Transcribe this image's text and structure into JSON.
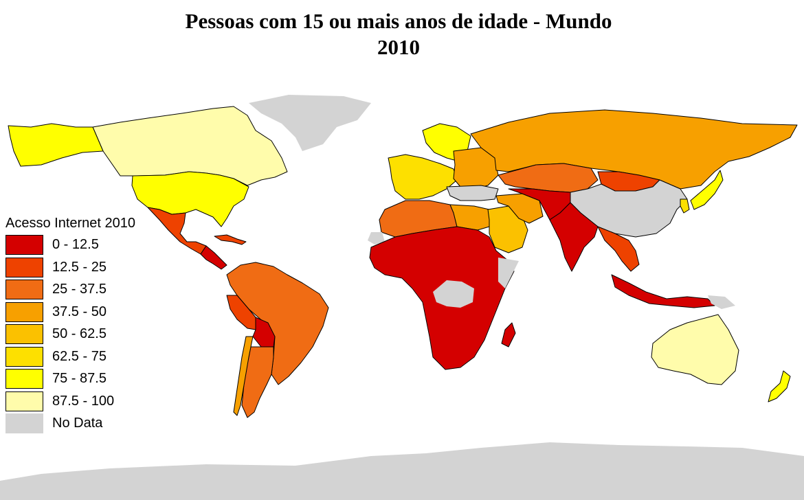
{
  "title": {
    "line1": "Pessoas com 15 ou mais anos de idade - Mundo",
    "line2": "2010"
  },
  "legend": {
    "title": "Acesso Internet 2010",
    "items": [
      {
        "label": "0 - 12.5",
        "color": "#d40000"
      },
      {
        "label": "12.5 - 25",
        "color": "#ee4200"
      },
      {
        "label": "25 - 37.5",
        "color": "#f06c14"
      },
      {
        "label": "37.5 - 50",
        "color": "#f7a000"
      },
      {
        "label": "50 - 62.5",
        "color": "#fbc100"
      },
      {
        "label": "62.5 - 75",
        "color": "#fde000"
      },
      {
        "label": "75 - 87.5",
        "color": "#ffff00"
      },
      {
        "label": "87.5 - 100",
        "color": "#fffcab"
      },
      {
        "label": "No Data",
        "color": "#d3d3d3"
      }
    ]
  },
  "regions": [
    {
      "name": "North America (north)",
      "color": "#fffcab"
    },
    {
      "name": "Alaska",
      "color": "#ffff00"
    },
    {
      "name": "United States",
      "color": "#ffff00"
    },
    {
      "name": "Mexico",
      "color": "#ee4200"
    },
    {
      "name": "Central America",
      "color": "#d40000"
    },
    {
      "name": "Caribbean",
      "color": "#ee4200"
    },
    {
      "name": "Greenland",
      "color": "#d3d3d3"
    },
    {
      "name": "South America (north)",
      "color": "#f06c14"
    },
    {
      "name": "Brazil",
      "color": "#f06c14"
    },
    {
      "name": "Peru",
      "color": "#ee4200"
    },
    {
      "name": "Bolivia",
      "color": "#d40000"
    },
    {
      "name": "Argentina",
      "color": "#f06c14"
    },
    {
      "name": "Chile",
      "color": "#f7a000"
    },
    {
      "name": "Western Europe",
      "color": "#fde000"
    },
    {
      "name": "Scandinavia",
      "color": "#ffff00"
    },
    {
      "name": "Eastern Europe",
      "color": "#f7a000"
    },
    {
      "name": "Russia",
      "color": "#f7a000"
    },
    {
      "name": "Kazakhstan",
      "color": "#f06c14"
    },
    {
      "name": "Mongolia",
      "color": "#ee4200"
    },
    {
      "name": "China",
      "color": "#d3d3d3"
    },
    {
      "name": "Turkey",
      "color": "#d3d3d3"
    },
    {
      "name": "North Africa",
      "color": "#f06c14"
    },
    {
      "name": "Libya / Egypt",
      "color": "#f7a000"
    },
    {
      "name": "Arabian Peninsula",
      "color": "#fbc100"
    },
    {
      "name": "Iran",
      "color": "#f7a000"
    },
    {
      "name": "Central Asia",
      "color": "#d40000"
    },
    {
      "name": "India",
      "color": "#d40000"
    },
    {
      "name": "Southeast Asia",
      "color": "#ee4200"
    },
    {
      "name": "Indonesia",
      "color": "#d40000"
    },
    {
      "name": "Japan",
      "color": "#ffff00"
    },
    {
      "name": "Korea",
      "color": "#fde000"
    },
    {
      "name": "Sub-Saharan Africa",
      "color": "#d40000"
    },
    {
      "name": "Central Africa",
      "color": "#d3d3d3"
    },
    {
      "name": "Somalia",
      "color": "#d3d3d3"
    },
    {
      "name": "Western Sahara",
      "color": "#d3d3d3"
    },
    {
      "name": "Madagascar",
      "color": "#d40000"
    },
    {
      "name": "Australia",
      "color": "#fffcab"
    },
    {
      "name": "New Zealand",
      "color": "#ffff00"
    },
    {
      "name": "Papua New Guinea",
      "color": "#d3d3d3"
    },
    {
      "name": "Antarctica",
      "color": "#d3d3d3"
    }
  ]
}
